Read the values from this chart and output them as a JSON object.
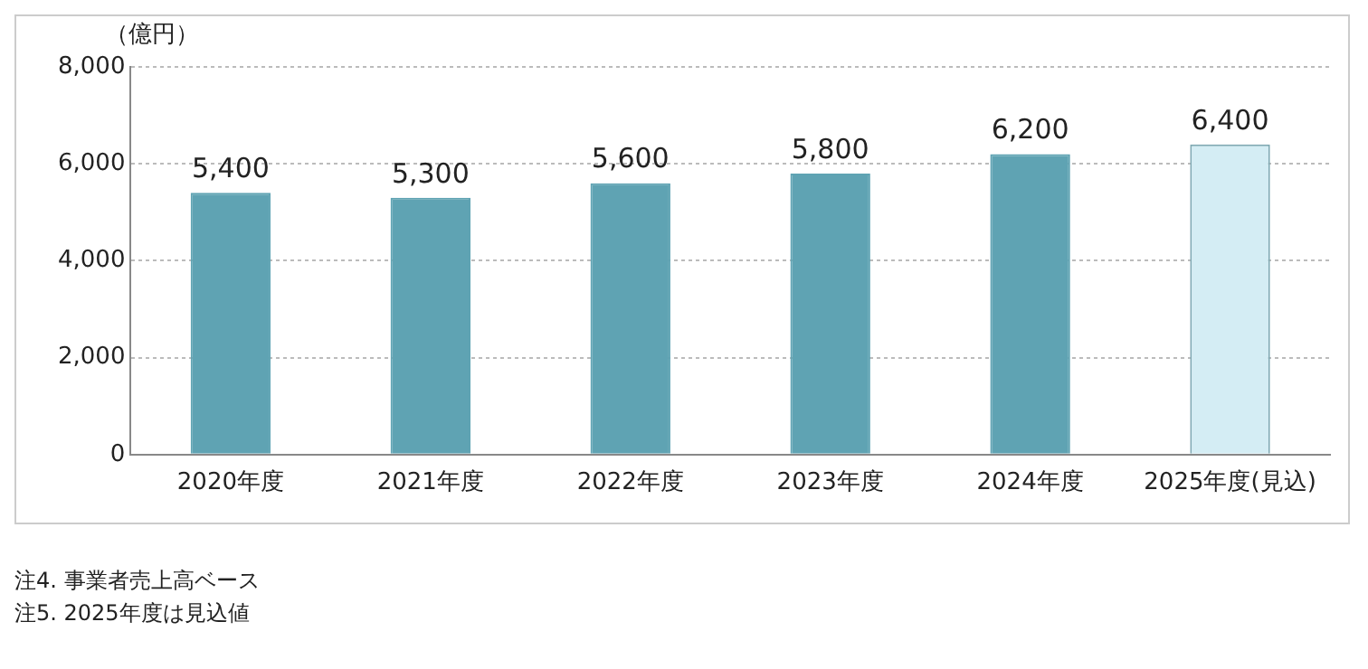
{
  "chart_data": {
    "type": "bar",
    "ylabel": "（億円）",
    "categories": [
      "2020年度",
      "2021年度",
      "2022年度",
      "2023年度",
      "2024年度",
      "2025年度(見込)"
    ],
    "values": [
      5400,
      5300,
      5600,
      5800,
      6200,
      6400
    ],
    "colors": [
      "#5fa3b3",
      "#5fa3b3",
      "#5fa3b3",
      "#5fa3b3",
      "#5fa3b3",
      "#d4edf4"
    ],
    "ylim": [
      0,
      8000
    ],
    "yticks": [
      {
        "value": 0,
        "label": "0"
      },
      {
        "value": 2000,
        "label": "2,000"
      },
      {
        "value": 4000,
        "label": "4,000"
      },
      {
        "value": 6000,
        "label": "6,000"
      },
      {
        "value": 8000,
        "label": "8,000"
      }
    ],
    "value_labels": [
      "5,400",
      "5,300",
      "5,600",
      "5,800",
      "6,200",
      "6,400"
    ],
    "grid": "y",
    "legend": false,
    "annotations": [
      "注4. 事業者売上高ベース",
      "注5. 2025年度は見込値"
    ]
  }
}
